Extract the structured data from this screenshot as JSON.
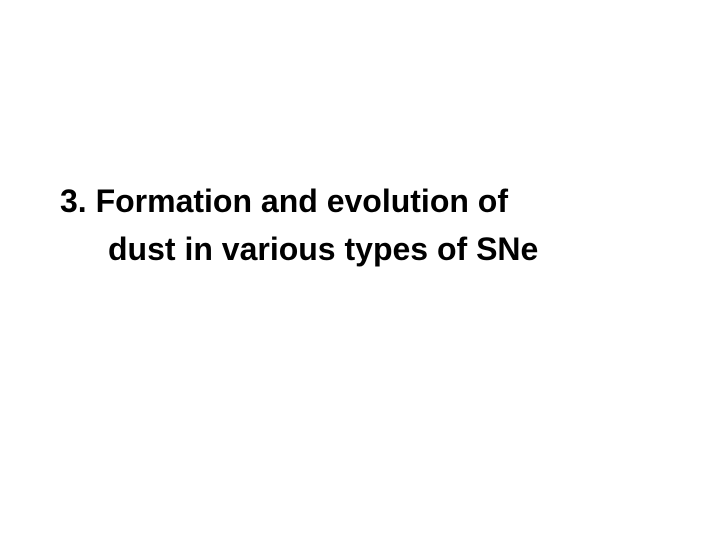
{
  "slide": {
    "heading_line1": "3. Formation and evolution of",
    "heading_line2": "dust in various types of SNe",
    "background_color": "#ffffff",
    "text_color": "#000000",
    "font_size": 32,
    "font_weight": "bold",
    "font_family": "Arial, Helvetica, sans-serif"
  }
}
